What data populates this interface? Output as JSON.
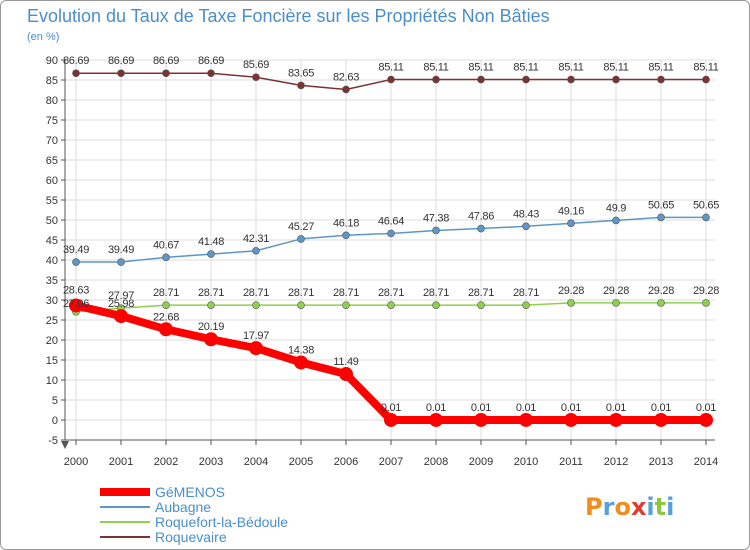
{
  "chart_data": {
    "type": "line",
    "title": "Evolution du Taux de Taxe Foncière sur les Propriétés Non Bâties",
    "subtitle": "(en %)",
    "categories": [
      "2000",
      "2001",
      "2002",
      "2003",
      "2004",
      "2005",
      "2006",
      "2007",
      "2008",
      "2009",
      "2010",
      "2011",
      "2012",
      "2013",
      "2014"
    ],
    "ylim": [
      -5,
      90
    ],
    "yticks": [
      "-5",
      "0",
      "5",
      "10",
      "15",
      "20",
      "25",
      "30",
      "35",
      "40",
      "45",
      "50",
      "55",
      "60",
      "65",
      "70",
      "75",
      "80",
      "85",
      "90"
    ],
    "grid": true,
    "legend_position": "bottom-left",
    "series": [
      {
        "name": "GéMENOS",
        "color": "#ff0000",
        "emphasis": true,
        "values": [
          28.63,
          25.98,
          22.68,
          20.19,
          17.97,
          14.38,
          11.49,
          0.01,
          0.01,
          0.01,
          0.01,
          0.01,
          0.01,
          0.01,
          0.01
        ],
        "labels": [
          "28.63",
          "25.98",
          "22.68",
          "20.19",
          "17.97",
          "14.38",
          "11.49",
          "0.01",
          "0.01",
          "0.01",
          "0.01",
          "0.01",
          "0.01",
          "0.01",
          "0.01"
        ]
      },
      {
        "name": "Aubagne",
        "color": "#5f96c8",
        "values": [
          39.49,
          39.49,
          40.67,
          41.48,
          42.31,
          45.27,
          46.18,
          46.64,
          47.38,
          47.86,
          48.43,
          49.16,
          49.9,
          50.65,
          50.65
        ],
        "labels": [
          "39.49",
          "39.49",
          "40.67",
          "41.48",
          "42.31",
          "45.27",
          "46.18",
          "46.64",
          "47.38",
          "47.86",
          "48.43",
          "49.16",
          "49.9",
          "50.65",
          "50.65"
        ]
      },
      {
        "name": "Roquefort-la-Bédoule",
        "color": "#8fd14f",
        "values": [
          27.06,
          27.97,
          28.71,
          28.71,
          28.71,
          28.71,
          28.71,
          28.71,
          28.71,
          28.71,
          28.71,
          29.28,
          29.28,
          29.28,
          29.28
        ],
        "labels": [
          "27.06",
          "27.97",
          "28.71",
          "28.71",
          "28.71",
          "28.71",
          "28.71",
          "28.71",
          "28.71",
          "28.71",
          "28.71",
          "29.28",
          "29.28",
          "29.28",
          "29.28"
        ]
      },
      {
        "name": "Roquevaire",
        "color": "#7b3333",
        "values": [
          86.69,
          86.69,
          86.69,
          86.69,
          85.69,
          83.65,
          82.63,
          85.11,
          85.11,
          85.11,
          85.11,
          85.11,
          85.11,
          85.11,
          85.11
        ],
        "labels": [
          "86.69",
          "86.69",
          "86.69",
          "86.69",
          "85.69",
          "83.65",
          "82.63",
          "85.11",
          "85.11",
          "85.11",
          "85.11",
          "85.11",
          "85.11",
          "85.11",
          "85.11"
        ]
      }
    ],
    "logo_text": "Proxiti"
  }
}
